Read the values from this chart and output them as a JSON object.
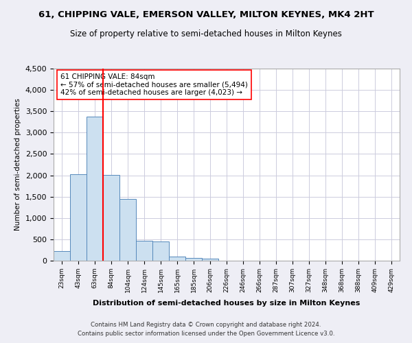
{
  "title_line1": "61, CHIPPING VALE, EMERSON VALLEY, MILTON KEYNES, MK4 2HT",
  "title_line2": "Size of property relative to semi-detached houses in Milton Keynes",
  "xlabel": "Distribution of semi-detached houses by size in Milton Keynes",
  "ylabel": "Number of semi-detached properties",
  "footnote1": "Contains HM Land Registry data © Crown copyright and database right 2024.",
  "footnote2": "Contains public sector information licensed under the Open Government Licence v3.0.",
  "bin_labels": [
    "23sqm",
    "43sqm",
    "63sqm",
    "84sqm",
    "104sqm",
    "124sqm",
    "145sqm",
    "165sqm",
    "185sqm",
    "206sqm",
    "226sqm",
    "246sqm",
    "266sqm",
    "287sqm",
    "307sqm",
    "327sqm",
    "348sqm",
    "368sqm",
    "388sqm",
    "409sqm",
    "429sqm"
  ],
  "bar_values": [
    230,
    2020,
    3380,
    2010,
    1450,
    470,
    450,
    90,
    60,
    55,
    0,
    0,
    0,
    0,
    0,
    0,
    0,
    0,
    0,
    0,
    0
  ],
  "bar_color": "#cce0f0",
  "bar_edge_color": "#5588bb",
  "vline_x_index": 3,
  "vline_color": "red",
  "annotation_text": "61 CHIPPING VALE: 84sqm\n← 57% of semi-detached houses are smaller (5,494)\n42% of semi-detached houses are larger (4,023) →",
  "annotation_box_color": "white",
  "annotation_box_edge": "red",
  "ylim": [
    0,
    4500
  ],
  "yticks": [
    0,
    500,
    1000,
    1500,
    2000,
    2500,
    3000,
    3500,
    4000,
    4500
  ],
  "background_color": "#eeeef5",
  "plot_bg_color": "white",
  "grid_color": "#ccccdd"
}
